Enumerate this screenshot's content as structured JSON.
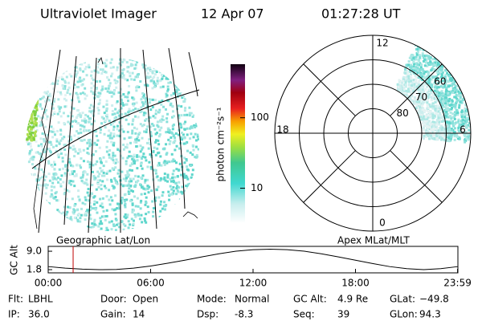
{
  "header": {
    "instrument": "Ultraviolet Imager",
    "date": "12 Apr 07",
    "time": "01:27:28 UT"
  },
  "geo_panel": {
    "label": "Geographic Lat/Lon"
  },
  "colorbar": {
    "label": "photon cm⁻²s⁻¹",
    "scale": "log",
    "ylim": [
      3.2,
      575
    ],
    "yticks": [
      10,
      100
    ]
  },
  "polar_panel": {
    "label": "Apex MLat/MLT",
    "mlt_labels": [
      12,
      18,
      6,
      0
    ],
    "lat_labels": [
      80,
      70,
      60
    ]
  },
  "altitude_plot": {
    "type": "line",
    "ylabel": "GC Alt",
    "color": "#000000",
    "x": [
      0,
      1,
      2,
      3,
      4,
      5,
      6,
      7,
      8,
      9,
      10,
      11,
      12,
      13,
      14,
      15,
      16,
      17,
      18,
      19,
      20,
      21,
      22,
      23,
      24
    ],
    "values": [
      3.0,
      2.4,
      2.0,
      1.8,
      1.9,
      2.4,
      3.2,
      4.3,
      5.5,
      6.8,
      8.0,
      9.0,
      9.6,
      9.8,
      9.6,
      9.0,
      8.0,
      6.8,
      5.5,
      4.2,
      3.0,
      2.2,
      1.8,
      2.2,
      3.0
    ],
    "xlim": [
      0,
      24
    ],
    "xticks": [
      {
        "value": 0,
        "label": "00:00"
      },
      {
        "value": 6,
        "label": "06:00"
      },
      {
        "value": 12,
        "label": "12:00"
      },
      {
        "value": 18,
        "label": "18:00"
      },
      {
        "value": 23.98,
        "label": "23:59"
      }
    ],
    "ylim": [
      0.55,
      10.9
    ],
    "yticks": [
      {
        "value": 9,
        "label": "9.0"
      },
      1.8
    ],
    "marker": 1.46,
    "marker_color": "#c00000"
  },
  "status": {
    "rows": [
      [
        [
          "Flt:",
          "LBHL"
        ],
        [
          "Door:",
          "Open"
        ],
        [
          "Mode:",
          "Normal"
        ],
        [
          "GC Alt:",
          "4.9 Re"
        ],
        [
          "GLat:",
          "−49.8"
        ]
      ],
      [
        [
          "IP:",
          "36.0"
        ],
        [
          "Gain:",
          "14"
        ],
        [
          "Dsp:",
          "-8.3"
        ],
        [
          "Seq:",
          "39"
        ],
        [
          "GLon:",
          "94.3"
        ]
      ]
    ]
  }
}
